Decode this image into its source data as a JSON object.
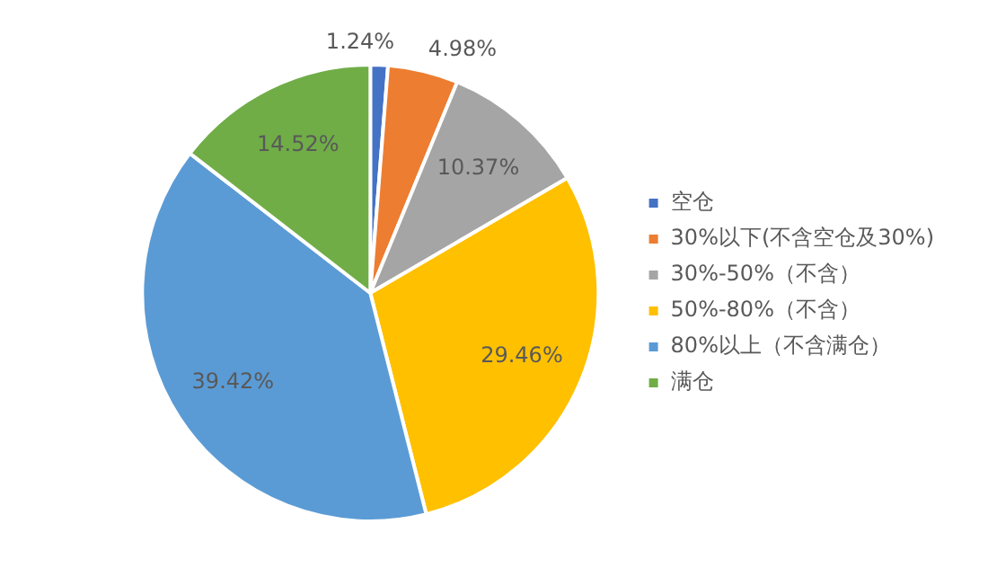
{
  "chart_data": {
    "type": "pie",
    "categories": [
      "空仓",
      "30%以下(不含空仓及30%)",
      "30%-50%（不含）",
      "50%-80%（不含）",
      "80%以上（不含满仓）",
      "满仓"
    ],
    "values": [
      1.24,
      4.98,
      10.37,
      29.46,
      39.42,
      14.52
    ],
    "value_labels": [
      "1.24%",
      "4.98%",
      "10.37%",
      "29.46%",
      "39.42%",
      "14.52%"
    ],
    "colors": [
      "#4472c4",
      "#ed7d31",
      "#a5a5a5",
      "#ffc000",
      "#5b9bd5",
      "#70ad47"
    ],
    "legend": "right"
  }
}
